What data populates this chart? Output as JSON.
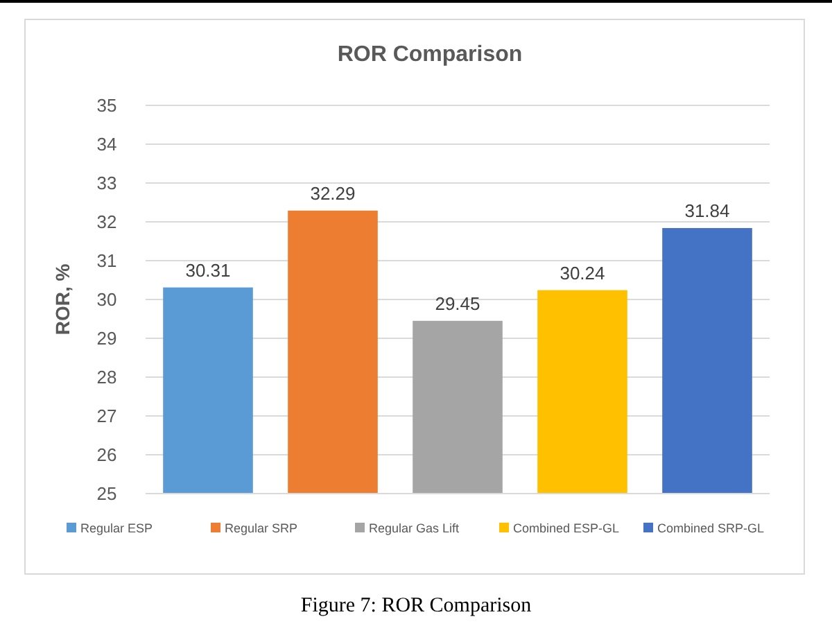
{
  "chart_data": {
    "type": "bar",
    "title": "ROR Comparison",
    "ylabel": "ROR, %",
    "categories": [
      null,
      null,
      null,
      null,
      null
    ],
    "series": [
      {
        "name": "Regular ESP",
        "color": "#5b9bd5",
        "values": [
          30.31,
          null,
          null,
          null,
          null
        ]
      },
      {
        "name": "Regular SRP",
        "color": "#ed7d31",
        "values": [
          null,
          32.29,
          null,
          null,
          null
        ]
      },
      {
        "name": "Regular Gas Lift",
        "color": "#a5a5a5",
        "values": [
          null,
          null,
          29.45,
          null,
          null
        ]
      },
      {
        "name": "Combined ESP-GL",
        "color": "#ffc000",
        "values": [
          null,
          null,
          null,
          30.24,
          null
        ]
      },
      {
        "name": "Combined SRP-GL",
        "color": "#4472c4",
        "values": [
          null,
          null,
          null,
          null,
          31.84
        ]
      }
    ],
    "ylim": [
      25,
      35
    ],
    "yticks": [
      25,
      26,
      27,
      28,
      29,
      30,
      31,
      32,
      33,
      34,
      35
    ],
    "grid": "y",
    "legend": "bottom",
    "data_labels": true,
    "annotations": [
      "Figure 7: ROR Comparison"
    ]
  }
}
